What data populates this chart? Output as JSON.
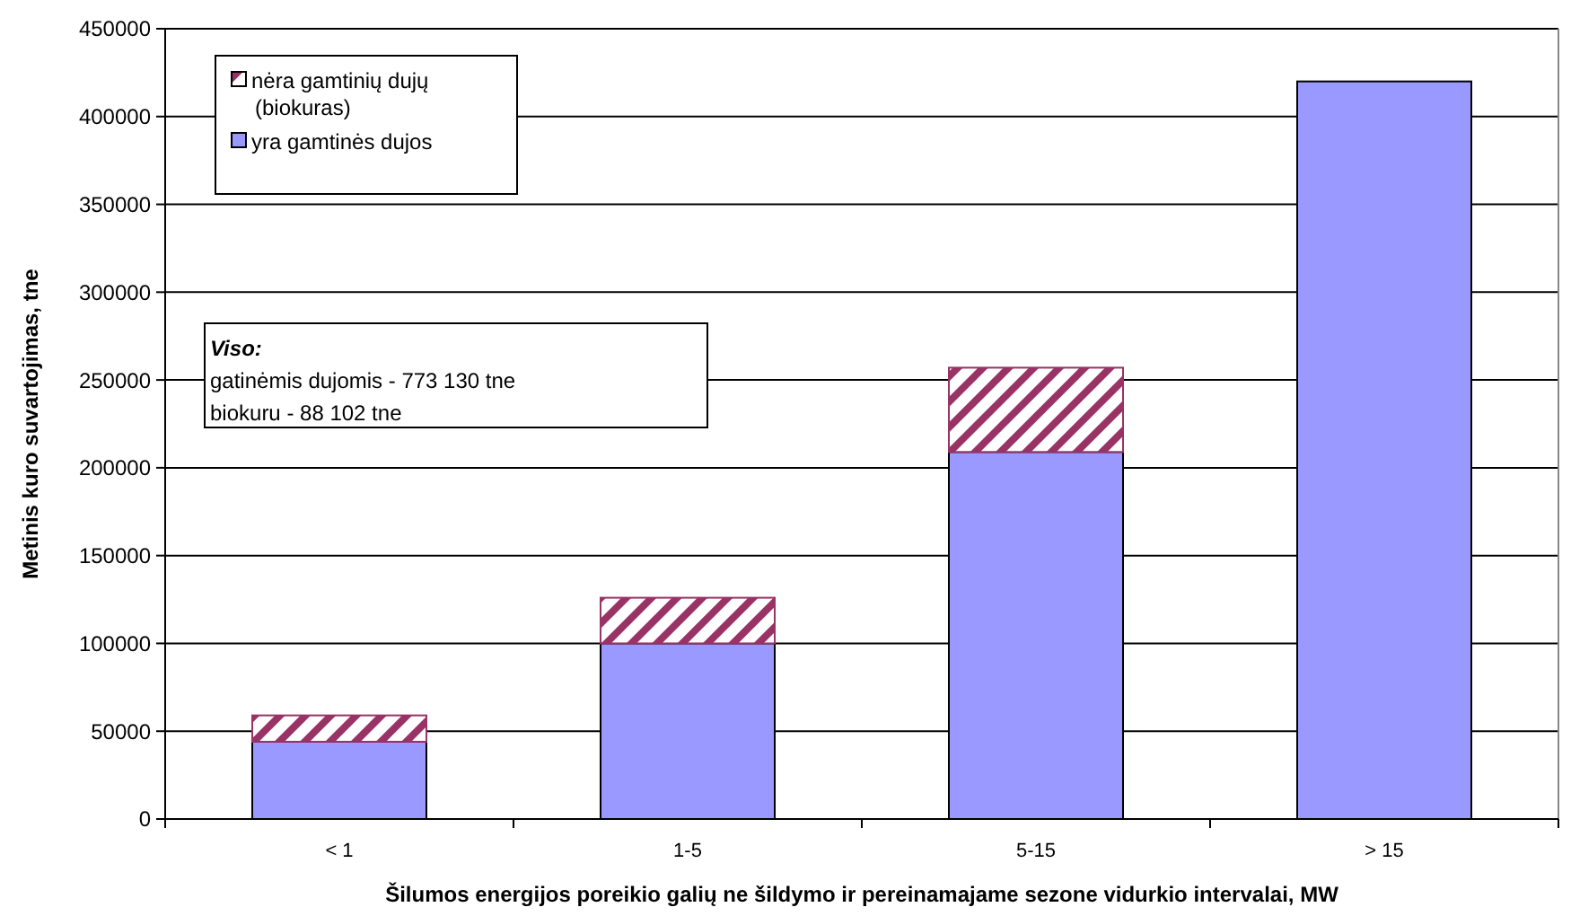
{
  "chart_data": {
    "type": "bar",
    "stacked": true,
    "xlabel": "Šilumos energijos poreikio galių ne šildymo ir pereinamajame sezone vidurkio intervalai, MW",
    "ylabel": "Metinis kuro suvartojimas, tne",
    "categories": [
      "< 1",
      "1-5",
      "5-15",
      "> 15"
    ],
    "series": [
      {
        "name": "yra gamtinės dujos",
        "color": "#9999ff",
        "values": [
          44000,
          100000,
          209000,
          420000
        ]
      },
      {
        "name": "nėra gamtinių dujų (biokuras)",
        "color": "#993366",
        "values": [
          15000,
          26000,
          48000,
          null
        ]
      }
    ],
    "ylim": [
      0,
      450000
    ],
    "yticks": [
      0,
      50000,
      100000,
      150000,
      200000,
      250000,
      300000,
      350000,
      400000,
      450000
    ],
    "grid": "y",
    "legend": "top left",
    "annotations": [
      "Viso:",
      "gatinėmis dujomis - 773 130 tne",
      "biokuru - 88 102 tne"
    ]
  }
}
